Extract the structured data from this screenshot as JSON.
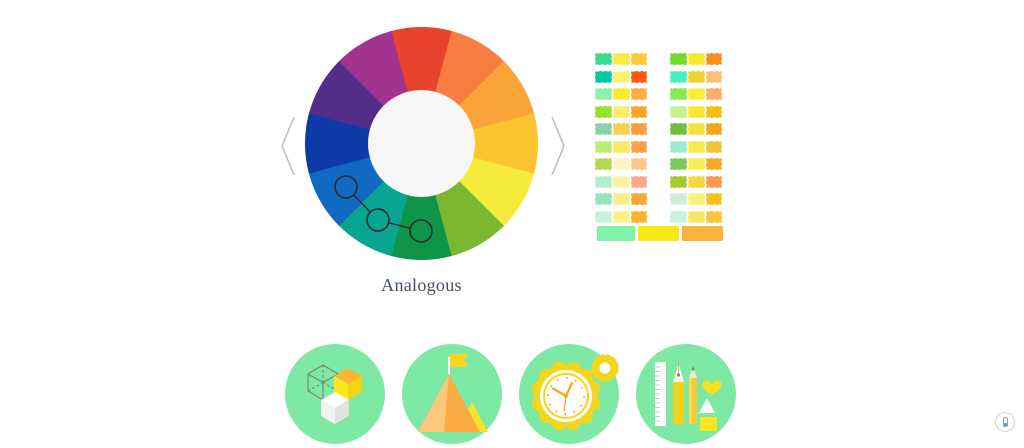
{
  "carousel": {
    "label": "Analogous",
    "prev_icon": "chevron-left-icon",
    "next_icon": "chevron-right-icon"
  },
  "wheel": {
    "segments_clockwise_from_top": [
      "#e8432c",
      "#f87d41",
      "#faa43a",
      "#fbc430",
      "#f6eb3a",
      "#7ab832",
      "#0f9549",
      "#0aa590",
      "#106ac3",
      "#0c3aa6",
      "#532d8a",
      "#a2348d"
    ],
    "inner_color": "#f7f7f7",
    "selection": {
      "type": "analogous",
      "marker_count": 3,
      "marked_segments": [
        "blue",
        "teal",
        "green"
      ]
    }
  },
  "palette_grid": {
    "columns": [
      {
        "rows": [
          [
            "#3fd98f",
            "#f7ec3e",
            "#fbca33"
          ],
          [
            "#00c9a0",
            "#fbf173",
            "#fa5a16"
          ],
          [
            "#8ef0ae",
            "#fbe92b",
            "#fbaf42"
          ],
          [
            "#97e02c",
            "#fbee6a",
            "#fba428"
          ],
          [
            "#8fd2a4",
            "#f8d052",
            "#fb9a40"
          ],
          [
            "#b9ec70",
            "#f9e862",
            "#fba14e"
          ],
          [
            "#b5d852",
            "#fdf3c6",
            "#fbc88a"
          ],
          [
            "#b2f0cd",
            "#fcf2a2",
            "#fba987"
          ],
          [
            "#93e8ba",
            "#f9ef88",
            "#f8a832"
          ],
          [
            "#c9f2dc",
            "#fdf180",
            "#fbb32a"
          ]
        ]
      },
      {
        "rows": [
          [
            "#6fdc28",
            "#f7e92c",
            "#fb8c1e"
          ],
          [
            "#45f0c2",
            "#ecd334",
            "#f9c078"
          ],
          [
            "#8ae84f",
            "#faee3c",
            "#fbaf68"
          ],
          [
            "#c4f28c",
            "#f8e432",
            "#f3c113"
          ],
          [
            "#6cbf3f",
            "#f3e53a",
            "#eda918"
          ],
          [
            "#9ee8d4",
            "#f7ea4a",
            "#f4c33a"
          ],
          [
            "#7cc95e",
            "#f9ef55",
            "#f9a91e"
          ],
          [
            "#a3cc2e",
            "#f5d83a",
            "#fb9a4e"
          ],
          [
            "#cdeed4",
            "#faf07c",
            "#f8c21a"
          ],
          [
            "#c9f2dd",
            "#f7e566",
            "#fbc63d"
          ]
        ]
      }
    ]
  },
  "selected_palette": [
    "#82f2a9",
    "#f8e912",
    "#fbb339"
  ],
  "features": {
    "circle_color": "#7ee9a4",
    "items": [
      {
        "name": "cubes-icon"
      },
      {
        "name": "mountain-flag-icon"
      },
      {
        "name": "gear-clock-icon"
      },
      {
        "name": "design-tools-icon"
      }
    ]
  },
  "scroll_widget": {
    "icon": "scroll-indicator-icon",
    "accent": "#5b9bd5"
  }
}
